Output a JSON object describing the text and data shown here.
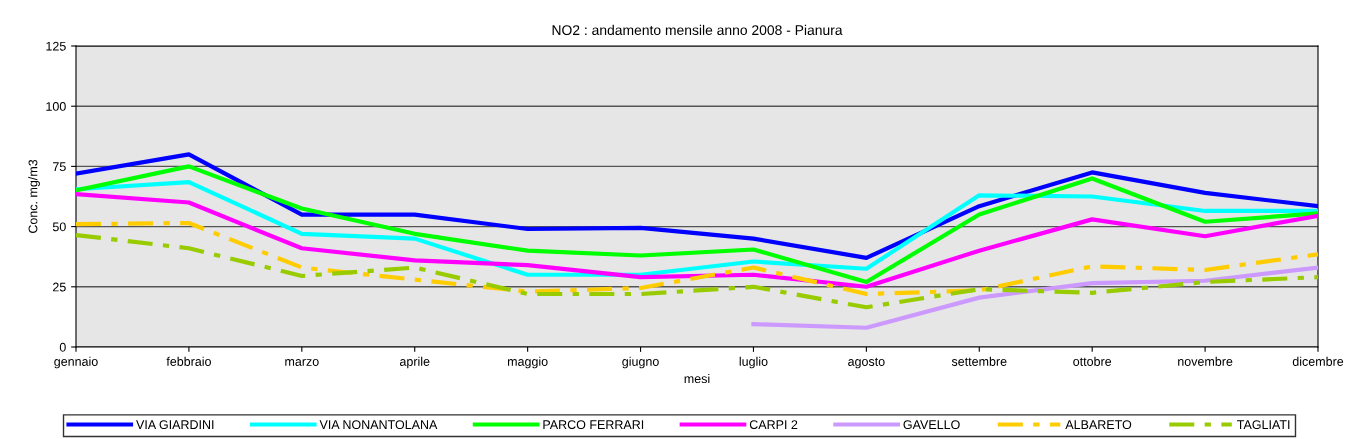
{
  "chart_data": {
    "type": "line",
    "title": "NO2 : andamento mensile anno 2008 - Pianura",
    "xlabel": "mesi",
    "ylabel": "Conc. mg/m3",
    "categories": [
      "gennaio",
      "febbraio",
      "marzo",
      "aprile",
      "maggio",
      "giugno",
      "luglio",
      "agosto",
      "settembre",
      "ottobre",
      "novembre",
      "dicembre"
    ],
    "series": [
      {
        "name": "VIA GIARDINI",
        "color": "#0000ff",
        "line_style": "solid",
        "values": [
          72,
          80,
          55,
          55,
          49,
          49.5,
          45,
          37,
          58.5,
          72.5,
          64,
          58.5
        ]
      },
      {
        "name": "VIA NONANTOLANA",
        "color": "#00ffff",
        "line_style": "solid",
        "values": [
          65.5,
          68.5,
          47,
          45,
          30,
          30,
          35.5,
          32.5,
          63,
          62.5,
          56.5,
          56.5
        ]
      },
      {
        "name": "PARCO FERRARI",
        "color": "#00ff00",
        "line_style": "solid",
        "values": [
          65,
          75,
          57.5,
          47,
          40,
          38,
          40.5,
          27,
          55,
          70,
          52,
          55.5
        ]
      },
      {
        "name": "CARPI 2",
        "color": "#ff00ff",
        "line_style": "solid",
        "values": [
          63.5,
          60,
          41,
          36,
          34,
          29,
          30,
          25,
          40,
          53,
          46,
          54.5
        ]
      },
      {
        "name": "GAVELLO",
        "color": "#cc99ff",
        "line_style": "solid",
        "values": [
          null,
          null,
          null,
          null,
          null,
          null,
          9.5,
          8,
          20.5,
          26.5,
          27.5,
          33
        ]
      },
      {
        "name": "ALBARETO",
        "color": "#ffcc00",
        "line_style": "dashed",
        "values": [
          51,
          51.5,
          33,
          28,
          23,
          24.5,
          33,
          22,
          23.5,
          33.5,
          32,
          38.5
        ]
      },
      {
        "name": "TAGLIATI",
        "color": "#99cc00",
        "line_style": "dashed",
        "values": [
          46.5,
          41,
          29.5,
          33,
          22,
          22,
          25,
          16.5,
          24,
          22.5,
          27,
          29
        ]
      }
    ],
    "ylim": [
      0,
      125
    ],
    "yticks": [
      0,
      25,
      50,
      75,
      100,
      125
    ],
    "grid": "y",
    "legend": "bottom",
    "marker": "none"
  }
}
